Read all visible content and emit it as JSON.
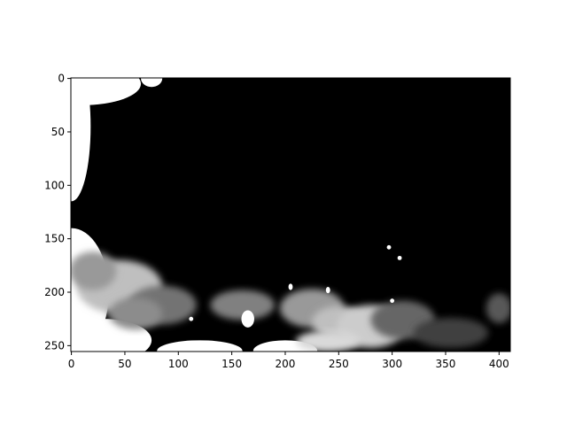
{
  "chart_data": {
    "type": "heatmap",
    "title": "",
    "xlabel": "",
    "ylabel": "",
    "colormap": "gray",
    "image_width": 411,
    "image_height": 256,
    "xlim": [
      -0.5,
      410.5
    ],
    "ylim": [
      255.5,
      -0.5
    ],
    "x_ticks": [
      0,
      50,
      100,
      150,
      200,
      250,
      300,
      350,
      400
    ],
    "y_ticks": [
      0,
      50,
      100,
      150,
      200,
      250
    ],
    "x_tick_labels": [
      "0",
      "50",
      "100",
      "150",
      "200",
      "250",
      "300",
      "350",
      "400"
    ],
    "y_tick_labels": [
      "0",
      "50",
      "100",
      "150",
      "200",
      "250"
    ],
    "background_value": 0.0,
    "bright_regions": [
      {
        "x": 0,
        "y": 200,
        "value": 1.0,
        "rx": 35,
        "ry": 60
      },
      {
        "x": 30,
        "y": 245,
        "value": 1.0,
        "rx": 45,
        "ry": 20
      },
      {
        "x": 10,
        "y": 5,
        "value": 1.0,
        "rx": 55,
        "ry": 20
      },
      {
        "x": 0,
        "y": 45,
        "value": 1.0,
        "rx": 18,
        "ry": 70
      },
      {
        "x": 75,
        "y": 0,
        "value": 1.0,
        "rx": 10,
        "ry": 8
      },
      {
        "x": 45,
        "y": 195,
        "value": 0.75,
        "rx": 40,
        "ry": 25
      },
      {
        "x": 20,
        "y": 180,
        "value": 0.6,
        "rx": 22,
        "ry": 18
      },
      {
        "x": 85,
        "y": 212,
        "value": 0.45,
        "rx": 32,
        "ry": 18
      },
      {
        "x": 60,
        "y": 220,
        "value": 0.55,
        "rx": 25,
        "ry": 15
      },
      {
        "x": 120,
        "y": 255,
        "value": 1.0,
        "rx": 40,
        "ry": 10
      },
      {
        "x": 160,
        "y": 212,
        "value": 0.5,
        "rx": 30,
        "ry": 14
      },
      {
        "x": 165,
        "y": 225,
        "value": 1.0,
        "rx": 6,
        "ry": 8
      },
      {
        "x": 200,
        "y": 255,
        "value": 1.0,
        "rx": 30,
        "ry": 10
      },
      {
        "x": 225,
        "y": 215,
        "value": 0.6,
        "rx": 30,
        "ry": 18
      },
      {
        "x": 250,
        "y": 228,
        "value": 0.75,
        "rx": 25,
        "ry": 15
      },
      {
        "x": 280,
        "y": 232,
        "value": 0.8,
        "rx": 32,
        "ry": 20
      },
      {
        "x": 240,
        "y": 246,
        "value": 0.85,
        "rx": 30,
        "ry": 10
      },
      {
        "x": 310,
        "y": 226,
        "value": 0.4,
        "rx": 30,
        "ry": 18
      },
      {
        "x": 355,
        "y": 238,
        "value": 0.25,
        "rx": 35,
        "ry": 14
      },
      {
        "x": 400,
        "y": 215,
        "value": 0.35,
        "rx": 12,
        "ry": 14
      },
      {
        "x": 205,
        "y": 195,
        "value": 1.0,
        "rx": 2,
        "ry": 3
      },
      {
        "x": 240,
        "y": 198,
        "value": 1.0,
        "rx": 2,
        "ry": 3
      },
      {
        "x": 297,
        "y": 158,
        "value": 1.0,
        "rx": 2,
        "ry": 2
      },
      {
        "x": 307,
        "y": 168,
        "value": 1.0,
        "rx": 2,
        "ry": 2
      },
      {
        "x": 300,
        "y": 208,
        "value": 1.0,
        "rx": 2,
        "ry": 2
      },
      {
        "x": 112,
        "y": 225,
        "value": 1.0,
        "rx": 2,
        "ry": 2
      },
      {
        "x": 7,
        "y": 18,
        "value": 1.0,
        "rx": 2,
        "ry": 2
      }
    ]
  }
}
